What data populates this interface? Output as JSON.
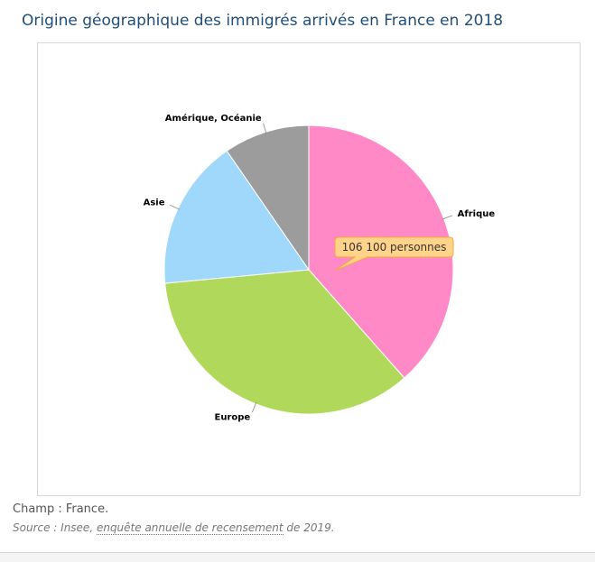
{
  "title": "Origine géographique des immigrés arrivés en France en 2018",
  "chart_data": {
    "type": "pie",
    "title": "Origine géographique des immigrés arrivés en France en 2018",
    "slices": [
      {
        "label": "Afrique",
        "value": 38.5,
        "color": "#ff88c6"
      },
      {
        "label": "Europe",
        "value": 35.0,
        "color": "#b0d85a"
      },
      {
        "label": "Asie",
        "value": 16.9,
        "color": "#9fd8fa"
      },
      {
        "label": "Amérique, Océanie",
        "value": 9.6,
        "color": "#9c9c9c"
      }
    ],
    "tooltip": {
      "slice": "Afrique",
      "text": "106 100 personnes"
    }
  },
  "notes": {
    "champ": "Champ : France.",
    "source_prefix": "Source : Insee, ",
    "source_link": "enquête annuelle de recensement",
    "source_suffix": " de 2019."
  }
}
